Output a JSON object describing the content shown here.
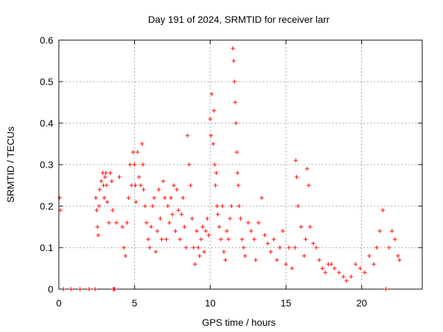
{
  "chart_data": {
    "type": "scatter",
    "title": "Day 191 of 2024, SRMTID for receiver larr",
    "xlabel": "GPS time / hours",
    "ylabel": "SRMTID / TECUs",
    "xlim": [
      0,
      24
    ],
    "ylim": [
      0,
      0.6
    ],
    "xticks": [
      0,
      5,
      10,
      15,
      20
    ],
    "xtick_labels": [
      "0",
      "5",
      "10",
      "15",
      "20"
    ],
    "yticks": [
      0,
      0.1,
      0.2,
      0.3,
      0.4,
      0.5,
      0.6
    ],
    "ytick_labels": [
      "0",
      "0.1",
      "0.2",
      "0.3",
      "0.4",
      "0.5",
      "0.6"
    ],
    "grid": true,
    "marker": "plus",
    "color": "#ff0000",
    "series": [
      {
        "name": "SRMTID",
        "x": [
          0.05,
          0.1,
          0.3,
          0.8,
          1.4,
          2.0,
          2.4,
          2.45,
          2.5,
          2.55,
          2.6,
          2.65,
          2.7,
          2.8,
          2.9,
          2.95,
          3.0,
          3.05,
          3.1,
          3.15,
          3.2,
          3.3,
          3.4,
          3.5,
          3.55,
          3.6,
          3.65,
          3.7,
          3.8,
          4.0,
          4.2,
          4.3,
          4.4,
          4.5,
          4.6,
          4.7,
          4.8,
          4.9,
          5.0,
          5.05,
          5.1,
          5.2,
          5.3,
          5.4,
          5.5,
          5.55,
          5.6,
          5.7,
          5.8,
          5.9,
          6.0,
          6.1,
          6.2,
          6.3,
          6.4,
          6.5,
          6.6,
          6.7,
          6.8,
          6.9,
          7.0,
          7.1,
          7.2,
          7.3,
          7.4,
          7.5,
          7.6,
          7.7,
          7.8,
          7.9,
          8.0,
          8.1,
          8.2,
          8.3,
          8.4,
          8.5,
          8.6,
          8.7,
          8.8,
          8.9,
          9.0,
          9.1,
          9.2,
          9.3,
          9.4,
          9.5,
          9.6,
          9.7,
          9.8,
          9.9,
          10.0,
          10.05,
          10.1,
          10.2,
          10.25,
          10.3,
          10.35,
          10.4,
          10.45,
          10.5,
          10.6,
          10.7,
          10.8,
          10.9,
          11.0,
          11.1,
          11.2,
          11.3,
          11.4,
          11.5,
          11.55,
          11.6,
          11.65,
          11.7,
          11.75,
          11.8,
          11.85,
          11.9,
          12.0,
          12.1,
          12.2,
          12.3,
          12.5,
          12.7,
          12.9,
          13.0,
          13.2,
          13.4,
          13.6,
          13.8,
          14.0,
          14.2,
          14.4,
          14.6,
          14.8,
          15.0,
          15.2,
          15.4,
          15.6,
          15.65,
          15.7,
          15.8,
          16.0,
          16.2,
          16.3,
          16.4,
          16.5,
          16.6,
          16.8,
          17.0,
          17.2,
          17.4,
          17.6,
          17.8,
          18.0,
          18.2,
          18.5,
          18.8,
          19.0,
          19.3,
          19.6,
          19.9,
          20.2,
          20.5,
          20.8,
          21.0,
          21.2,
          21.4,
          21.6,
          21.8,
          22.0,
          22.2,
          22.4,
          22.5
        ],
        "y": [
          0.22,
          0.19,
          0.0,
          0.0,
          0.0,
          0.0,
          0.0,
          0.22,
          0.19,
          0.15,
          0.13,
          0.2,
          0.24,
          0.26,
          0.28,
          0.25,
          0.22,
          0.27,
          0.28,
          0.25,
          0.21,
          0.16,
          0.28,
          0.26,
          0.19,
          0.0,
          0.0,
          0.0,
          0.16,
          0.27,
          0.15,
          0.1,
          0.08,
          0.16,
          0.22,
          0.3,
          0.25,
          0.33,
          0.3,
          0.25,
          0.21,
          0.33,
          0.27,
          0.25,
          0.35,
          0.3,
          0.24,
          0.2,
          0.16,
          0.12,
          0.1,
          0.15,
          0.2,
          0.22,
          0.09,
          0.14,
          0.24,
          0.17,
          0.12,
          0.26,
          0.22,
          0.12,
          0.2,
          0.16,
          0.22,
          0.18,
          0.25,
          0.14,
          0.24,
          0.19,
          0.12,
          0.18,
          0.22,
          0.15,
          0.1,
          0.37,
          0.3,
          0.25,
          0.17,
          0.1,
          0.06,
          0.14,
          0.1,
          0.08,
          0.12,
          0.15,
          0.09,
          0.14,
          0.17,
          0.13,
          0.41,
          0.37,
          0.47,
          0.35,
          0.43,
          0.3,
          0.25,
          0.28,
          0.2,
          0.18,
          0.15,
          0.12,
          0.2,
          0.09,
          0.07,
          0.14,
          0.12,
          0.17,
          0.2,
          0.58,
          0.55,
          0.5,
          0.45,
          0.4,
          0.33,
          0.28,
          0.25,
          0.2,
          0.17,
          0.12,
          0.1,
          0.08,
          0.16,
          0.14,
          0.12,
          0.07,
          0.16,
          0.22,
          0.13,
          0.11,
          0.09,
          0.12,
          0.07,
          0.1,
          0.14,
          0.06,
          0.1,
          0.05,
          0.1,
          0.31,
          0.27,
          0.2,
          0.15,
          0.08,
          0.12,
          0.29,
          0.25,
          0.15,
          0.11,
          0.1,
          0.07,
          0.05,
          0.04,
          0.06,
          0.06,
          0.05,
          0.04,
          0.03,
          0.02,
          0.03,
          0.06,
          0.05,
          0.04,
          0.08,
          0.06,
          0.1,
          0.14,
          0.19,
          0.0,
          0.1,
          0.14,
          0.12,
          0.08,
          0.07
        ]
      }
    ]
  }
}
